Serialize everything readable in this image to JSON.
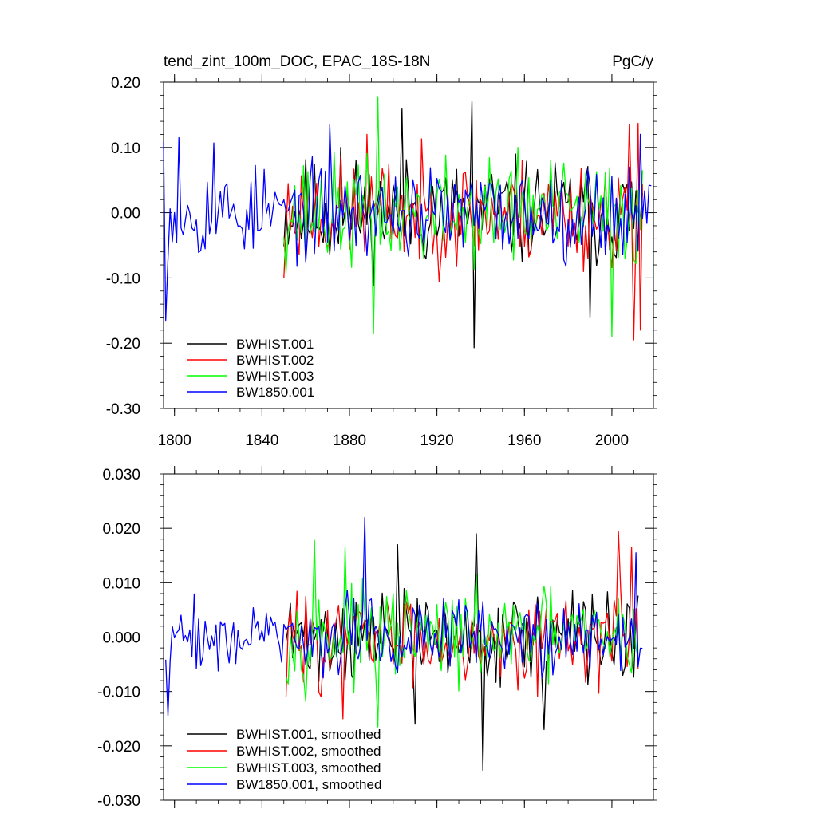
{
  "chart_data": [
    {
      "type": "line",
      "title": "tend_zint_100m_DOC, EPAC_18S-18N",
      "units": "PgC/y",
      "xlabel": "",
      "ylabel": "",
      "xlim": [
        1795,
        2019
      ],
      "ylim": [
        -0.3,
        0.2
      ],
      "xticks": [
        1800,
        1840,
        1880,
        1920,
        1960,
        2000
      ],
      "xtick_labels": [
        "1800",
        "1840",
        "1880",
        "1920",
        "1960",
        "2000"
      ],
      "yticks": [
        0.2,
        0.1,
        0.0,
        -0.1,
        -0.2,
        -0.3
      ],
      "ytick_labels": [
        "0.20",
        "0.10",
        "0.00",
        "-0.10",
        "-0.20",
        "-0.30"
      ],
      "legend_position": "bottom-left",
      "series": [
        {
          "name": "BWHIST.001",
          "color": "#000000",
          "start": 1850,
          "end": 2014,
          "amplitude": 0.065,
          "seed": 11,
          "peaks": [
            [
              1904,
              0.16
            ],
            [
              1936,
              0.17
            ],
            [
              1937,
              -0.207
            ],
            [
              1990,
              -0.16
            ],
            [
              1876,
              0.1
            ]
          ]
        },
        {
          "name": "BWHIST.002",
          "color": "#ff0000",
          "start": 1850,
          "end": 2014,
          "amplitude": 0.065,
          "seed": 23,
          "peaks": [
            [
              1888,
              0.12
            ],
            [
              2008,
              0.135
            ],
            [
              2012,
              0.137
            ],
            [
              2010,
              -0.195
            ],
            [
              2013,
              -0.18
            ],
            [
              1850,
              -0.1
            ]
          ]
        },
        {
          "name": "BWHIST.003",
          "color": "#00ff00",
          "start": 1850,
          "end": 2014,
          "amplitude": 0.065,
          "seed": 37,
          "peaks": [
            [
              1893,
              0.178
            ],
            [
              1891,
              -0.185
            ],
            [
              2000,
              -0.19
            ],
            [
              1957,
              0.1
            ]
          ]
        },
        {
          "name": "BW1850.001",
          "color": "#0000ff",
          "start": 1795,
          "end": 2018,
          "amplitude": 0.055,
          "seed": 53,
          "peaks": [
            [
              1796,
              -0.165
            ],
            [
              1802,
              0.115
            ],
            [
              1795,
              0.108
            ],
            [
              1871,
              0.135
            ],
            [
              2013,
              0.12
            ],
            [
              1818,
              0.107
            ]
          ]
        }
      ]
    },
    {
      "type": "line",
      "title": "",
      "units": "",
      "xlabel": "",
      "ylabel": "",
      "xlim": [
        1795,
        2019
      ],
      "ylim": [
        -0.03,
        0.03
      ],
      "xticks": [
        1800,
        1840,
        1880,
        1920,
        1960,
        2000
      ],
      "xtick_labels": [],
      "yticks": [
        0.03,
        0.02,
        0.01,
        0.0,
        -0.01,
        -0.02,
        -0.03
      ],
      "ytick_labels": [
        "0.030",
        "0.020",
        "0.010",
        "0.000",
        "-0.010",
        "-0.020",
        "-0.030"
      ],
      "legend_position": "bottom-left",
      "series": [
        {
          "name": "BWHIST.001, smoothed",
          "color": "#000000",
          "start": 1851,
          "end": 2012,
          "amplitude": 0.0065,
          "seed": 71,
          "peaks": [
            [
              1941,
              -0.0245
            ],
            [
              1938,
              0.019
            ],
            [
              1969,
              -0.017
            ],
            [
              1910,
              -0.016
            ],
            [
              1902,
              0.017
            ]
          ]
        },
        {
          "name": "BWHIST.002, smoothed",
          "color": "#ff0000",
          "start": 1851,
          "end": 2012,
          "amplitude": 0.0065,
          "seed": 83,
          "peaks": [
            [
              2003,
              0.0195
            ],
            [
              2009,
              0.0165
            ],
            [
              1851,
              -0.011
            ],
            [
              1877,
              -0.015
            ]
          ]
        },
        {
          "name": "BWHIST.003, smoothed",
          "color": "#00ff00",
          "start": 1851,
          "end": 2012,
          "amplitude": 0.0065,
          "seed": 97,
          "peaks": [
            [
              1864,
              0.0178
            ],
            [
              1893,
              -0.0165
            ],
            [
              1878,
              0.0165
            ]
          ]
        },
        {
          "name": "BW1850.001, smoothed",
          "color": "#0000ff",
          "start": 1796,
          "end": 2014,
          "amplitude": 0.0055,
          "seed": 109,
          "peaks": [
            [
              1887,
              0.022
            ],
            [
              1797,
              -0.0145
            ],
            [
              2011,
              0.0155
            ]
          ]
        }
      ]
    }
  ]
}
